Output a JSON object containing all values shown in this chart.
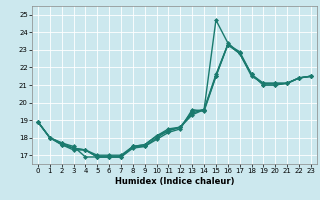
{
  "title": "",
  "xlabel": "Humidex (Indice chaleur)",
  "ylabel": "",
  "bg_color": "#cce8ee",
  "line_color": "#1a7a6e",
  "marker": "D",
  "markersize": 2,
  "linewidth": 1.0,
  "xlim": [
    -0.5,
    23.5
  ],
  "ylim": [
    16.5,
    25.5
  ],
  "yticks": [
    17,
    18,
    19,
    20,
    21,
    22,
    23,
    24,
    25
  ],
  "xticks": [
    0,
    1,
    2,
    3,
    4,
    5,
    6,
    7,
    8,
    9,
    10,
    11,
    12,
    13,
    14,
    15,
    16,
    17,
    18,
    19,
    20,
    21,
    22,
    23
  ],
  "lines": [
    {
      "x": [
        0,
        1,
        2,
        3,
        4,
        5,
        6,
        7,
        8,
        9,
        10,
        11,
        12,
        13,
        14,
        15,
        16,
        17,
        18,
        19,
        20,
        21,
        22,
        23
      ],
      "y": [
        18.9,
        18.0,
        17.6,
        17.3,
        17.3,
        16.9,
        16.9,
        16.9,
        17.5,
        17.5,
        17.9,
        18.3,
        18.5,
        19.6,
        19.5,
        21.5,
        23.3,
        22.8,
        21.6,
        21.0,
        21.0,
        21.1,
        21.4,
        21.5
      ]
    },
    {
      "x": [
        0,
        1,
        2,
        3,
        4,
        5,
        6,
        7,
        8,
        9,
        10,
        11,
        12,
        13,
        14,
        15,
        16,
        17,
        18,
        19,
        20,
        21,
        22,
        23
      ],
      "y": [
        18.9,
        18.0,
        17.7,
        17.5,
        16.9,
        16.9,
        16.9,
        16.9,
        17.4,
        17.5,
        18.0,
        18.4,
        18.6,
        19.3,
        19.6,
        24.7,
        23.4,
        22.8,
        21.5,
        21.1,
        21.1,
        21.1,
        21.4,
        21.5
      ]
    },
    {
      "x": [
        0,
        1,
        2,
        3,
        4,
        5,
        6,
        7,
        8,
        9,
        10,
        11,
        12,
        13,
        14,
        15,
        16,
        17,
        18,
        19,
        20,
        21,
        22,
        23
      ],
      "y": [
        18.9,
        18.0,
        17.7,
        17.4,
        17.3,
        16.9,
        16.9,
        16.9,
        17.5,
        17.6,
        18.1,
        18.5,
        18.6,
        19.5,
        19.6,
        21.6,
        23.3,
        22.8,
        21.6,
        21.0,
        21.0,
        21.1,
        21.4,
        21.5
      ]
    },
    {
      "x": [
        0,
        1,
        2,
        3,
        4,
        5,
        6,
        7,
        8,
        9,
        10,
        11,
        12,
        13,
        14,
        15,
        16,
        17,
        18,
        19,
        20,
        21,
        22,
        23
      ],
      "y": [
        18.9,
        18.0,
        17.6,
        17.4,
        17.3,
        17.0,
        17.0,
        17.0,
        17.5,
        17.6,
        18.1,
        18.4,
        18.6,
        19.4,
        19.6,
        21.5,
        23.3,
        22.9,
        21.6,
        21.1,
        21.1,
        21.1,
        21.4,
        21.5
      ]
    }
  ]
}
